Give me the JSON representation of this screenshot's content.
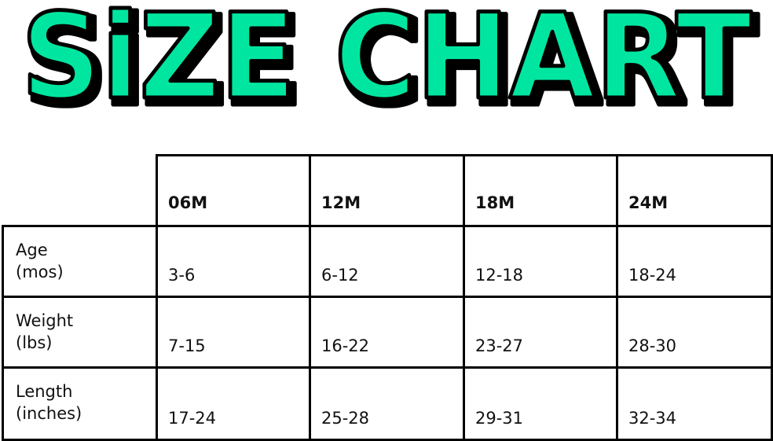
{
  "title": {
    "text": "SiZE CHART",
    "fill_color": "#00E6A0",
    "outline_color": "#000000"
  },
  "table": {
    "columns": [
      "06M",
      "12M",
      "18M",
      "24M"
    ],
    "rows": [
      {
        "label_line1": "Age",
        "label_line2": "(mos)",
        "values": [
          "3-6",
          "6-12",
          "12-18",
          "18-24"
        ]
      },
      {
        "label_line1": "Weight",
        "label_line2": "(lbs)",
        "values": [
          "7-15",
          "16-22",
          "23-27",
          "28-30"
        ]
      },
      {
        "label_line1": "Length",
        "label_line2": "(inches)",
        "values": [
          "17-24",
          "25-28",
          "29-31",
          "32-34"
        ]
      }
    ]
  }
}
